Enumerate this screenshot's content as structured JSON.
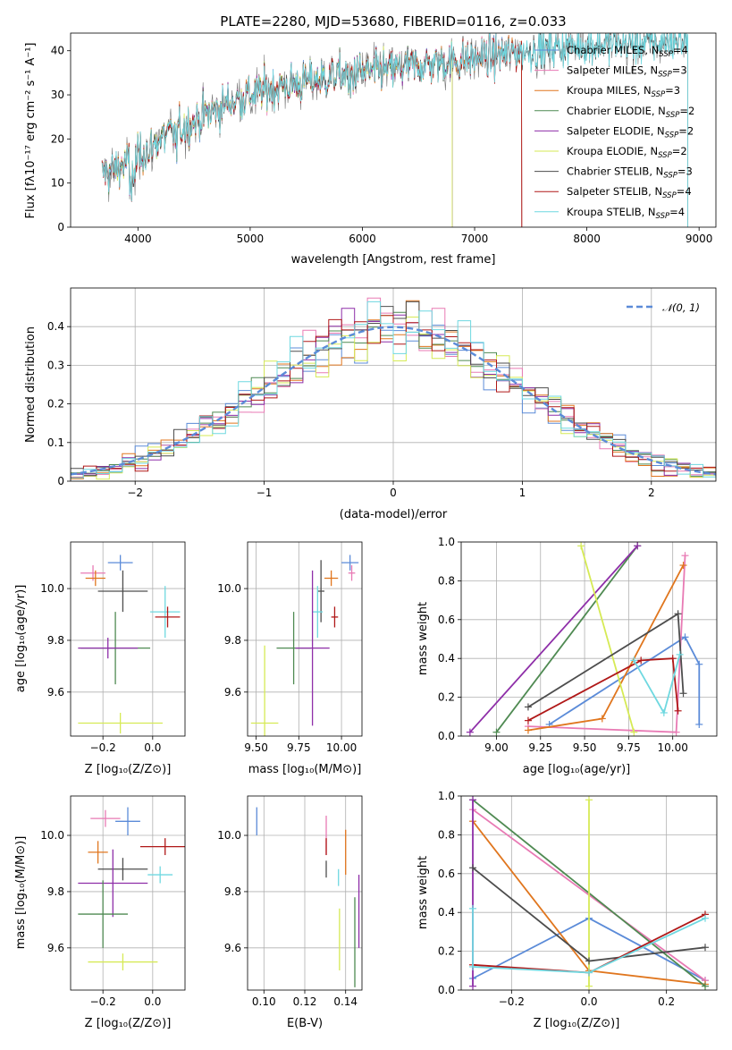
{
  "colors": {
    "Chabrier MILES": "#5b8bd8",
    "Salpeter MILES": "#e87ab4",
    "Kroupa MILES": "#e0761e",
    "Chabrier ELODIE": "#4f8a52",
    "Salpeter ELODIE": "#8e2ea8",
    "Kroupa ELODIE": "#d6ea55",
    "Chabrier STELIB": "#4d4d4d",
    "Salpeter STELIB": "#b01818",
    "Kroupa STELIB": "#6fd8e0"
  },
  "chart_data": [
    {
      "id": "spectrum",
      "type": "line",
      "title": "PLATE=2280, MJD=53680, FIBERID=0116, z=0.033",
      "xlabel": "wavelength [Angstrom, rest frame]",
      "ylabel": "Flux [fλ10⁻¹⁷ erg cm⁻² s⁻¹ A⁻¹]",
      "xlim": [
        3400,
        9150
      ],
      "ylim": [
        0,
        44
      ],
      "xticks": [
        4000,
        5000,
        6000,
        7000,
        8000,
        9000
      ],
      "yticks": [
        0,
        10,
        20,
        30,
        40
      ],
      "legend_position": "top-right",
      "legend": [
        {
          "base": "Chabrier MILES, N",
          "sub": "SSP",
          "tail": "=4"
        },
        {
          "base": "Salpeter MILES, N",
          "sub": "SSP",
          "tail": "=3"
        },
        {
          "base": "Kroupa MILES, N",
          "sub": "SSP",
          "tail": "=3"
        },
        {
          "base": "Chabrier ELODIE, N",
          "sub": "SSP",
          "tail": "=2"
        },
        {
          "base": "Salpeter ELODIE, N",
          "sub": "SSP",
          "tail": "=2"
        },
        {
          "base": "Kroupa ELODIE, N",
          "sub": "SSP",
          "tail": "=2"
        },
        {
          "base": "Chabrier STELIB, N",
          "sub": "SSP",
          "tail": "=3"
        },
        {
          "base": "Salpeter STELIB, N",
          "sub": "SSP",
          "tail": "=4"
        },
        {
          "base": "Kroupa STELIB, N",
          "sub": "SSP",
          "tail": "=4"
        }
      ],
      "continuum": {
        "x": [
          3680,
          3850,
          4000,
          4200,
          4500,
          4800,
          5000,
          5200,
          5500,
          5800,
          6000,
          6300,
          6600,
          6900,
          7200,
          7500,
          7800,
          8100,
          8400,
          8700,
          8900
        ],
        "y": [
          12,
          14,
          16,
          20,
          24,
          28,
          30,
          31.5,
          33,
          34.5,
          35,
          36,
          37,
          38,
          39,
          40,
          41,
          41.5,
          41.5,
          42,
          42.5
        ]
      },
      "model_x_end": {
        "Chabrier MILES": 7420,
        "Kroupa MILES": 7420,
        "Salpeter MILES": 7420,
        "Chabrier STELIB": 8900,
        "Salpeter STELIB": 7420,
        "Kroupa STELIB": 8900,
        "Chabrier ELODIE": 6800,
        "Salpeter ELODIE": 6800,
        "Kroupa ELODIE": 6800
      }
    },
    {
      "id": "residuals",
      "type": "histogram",
      "xlabel": "(data-model)/error",
      "ylabel": "Normed distribution",
      "xlim": [
        -2.5,
        2.5
      ],
      "ylim": [
        0,
        0.5
      ],
      "xticks": [
        -2,
        -1,
        0,
        1,
        2
      ],
      "xtick_labels": [
        "−2",
        "−1",
        "0",
        "1",
        "2"
      ],
      "yticks": [
        0,
        0.1,
        0.2,
        0.3,
        0.4
      ],
      "legend_position": "top-right",
      "legend": "𝒩(0, 1)",
      "bin_width": 0.1
    },
    {
      "id": "age-vs-z",
      "type": "errorbar",
      "xlabel": "Z [log₁₀(Z/Z⊙)]",
      "ylabel": "age  [log₁₀(age/yr)]",
      "xlim": [
        -0.33,
        0.13
      ],
      "ylim": [
        9.43,
        10.18
      ],
      "xticks": [
        -0.2,
        0.0
      ],
      "xtick_labels": [
        "−0.2",
        "0.0"
      ],
      "yticks": [
        9.6,
        9.8,
        10.0
      ],
      "yticks_labels": [
        "9.6",
        "9.8",
        "10.0"
      ],
      "points": [
        {
          "model": "Chabrier MILES",
          "x": -0.13,
          "y": 10.1,
          "xerr": 0.05,
          "yerr": 0.03
        },
        {
          "model": "Salpeter MILES",
          "x": -0.24,
          "y": 10.06,
          "xerr": 0.05,
          "yerr": 0.03
        },
        {
          "model": "Kroupa MILES",
          "x": -0.23,
          "y": 10.04,
          "xerr": 0.04,
          "yerr": 0.03
        },
        {
          "model": "Chabrier STELIB",
          "x": -0.12,
          "y": 9.99,
          "xerr": 0.1,
          "yerr": 0.08
        },
        {
          "model": "Kroupa STELIB",
          "x": 0.05,
          "y": 9.91,
          "xerr": 0.06,
          "yerr": 0.1
        },
        {
          "model": "Salpeter STELIB",
          "x": 0.06,
          "y": 9.89,
          "xerr": 0.05,
          "yerr": 0.04
        },
        {
          "model": "Chabrier ELODIE",
          "x": -0.15,
          "y": 9.77,
          "xerr": 0.14,
          "yerr": 0.14
        },
        {
          "model": "Salpeter ELODIE",
          "x": -0.18,
          "y": 9.77,
          "xerr": 0.12,
          "yerr": 0.04
        },
        {
          "model": "Kroupa ELODIE",
          "x": -0.13,
          "y": 9.48,
          "xerr": 0.17,
          "yerr": 0.04
        }
      ]
    },
    {
      "id": "age-vs-mass",
      "type": "errorbar",
      "xlabel": "mass [log₁₀(M/M⊙)]",
      "ylabel": "",
      "xlim": [
        9.45,
        10.12
      ],
      "ylim": [
        9.43,
        10.18
      ],
      "xticks": [
        9.5,
        9.75,
        10.0
      ],
      "xtick_labels": [
        "9.50",
        "9.75",
        "10.00"
      ],
      "yticks": [
        9.6,
        9.8,
        10.0
      ],
      "yticks_labels": [
        "9.6",
        "9.8",
        "10.0"
      ],
      "points": [
        {
          "model": "Chabrier MILES",
          "x": 10.05,
          "y": 10.1,
          "xerr": 0.05,
          "yerr": 0.03
        },
        {
          "model": "Salpeter MILES",
          "x": 10.06,
          "y": 10.06,
          "xerr": 0.02,
          "yerr": 0.03
        },
        {
          "model": "Kroupa MILES",
          "x": 9.94,
          "y": 10.04,
          "xerr": 0.04,
          "yerr": 0.03
        },
        {
          "model": "Chabrier STELIB",
          "x": 9.88,
          "y": 9.99,
          "xerr": 0.02,
          "yerr": 0.12
        },
        {
          "model": "Kroupa STELIB",
          "x": 9.86,
          "y": 9.91,
          "xerr": 0.03,
          "yerr": 0.1
        },
        {
          "model": "Salpeter STELIB",
          "x": 9.96,
          "y": 9.89,
          "xerr": 0.02,
          "yerr": 0.04
        },
        {
          "model": "Chabrier ELODIE",
          "x": 9.72,
          "y": 9.77,
          "xerr": 0.1,
          "yerr": 0.14
        },
        {
          "model": "Salpeter ELODIE",
          "x": 9.83,
          "y": 9.77,
          "xerr": 0.1,
          "yerr": 0.3
        },
        {
          "model": "Kroupa ELODIE",
          "x": 9.55,
          "y": 9.48,
          "xerr": 0.08,
          "yerr": 0.3
        }
      ]
    },
    {
      "id": "weight-vs-age",
      "type": "line",
      "xlabel": "age  [log₁₀(age/yr)]",
      "ylabel": "mass weight",
      "xlim": [
        8.8,
        10.25
      ],
      "ylim": [
        0,
        1
      ],
      "xticks": [
        9.0,
        9.25,
        9.5,
        9.75,
        10.0
      ],
      "xtick_labels": [
        "9.00",
        "9.25",
        "9.50",
        "9.75",
        "10.00"
      ],
      "yticks": [
        0,
        0.2,
        0.4,
        0.6,
        0.8,
        1.0
      ],
      "yticks_labels": [
        "0.0",
        "0.2",
        "0.4",
        "0.6",
        "0.8",
        "1.0"
      ],
      "series": [
        {
          "model": "Chabrier MILES",
          "x": [
            9.3,
            10.07,
            10.15,
            10.15
          ],
          "y": [
            0.06,
            0.51,
            0.37,
            0.06
          ]
        },
        {
          "model": "Salpeter MILES",
          "x": [
            9.18,
            10.02,
            10.07
          ],
          "y": [
            0.05,
            0.02,
            0.93
          ]
        },
        {
          "model": "Kroupa MILES",
          "x": [
            9.18,
            9.6,
            10.06
          ],
          "y": [
            0.03,
            0.09,
            0.88
          ]
        },
        {
          "model": "Chabrier ELODIE",
          "x": [
            9.0,
            9.8
          ],
          "y": [
            0.02,
            0.98
          ]
        },
        {
          "model": "Salpeter ELODIE",
          "x": [
            8.85,
            9.8
          ],
          "y": [
            0.02,
            0.98
          ]
        },
        {
          "model": "Kroupa ELODIE",
          "x": [
            9.48,
            9.78
          ],
          "y": [
            0.98,
            0.02
          ]
        },
        {
          "model": "Chabrier STELIB",
          "x": [
            9.18,
            10.03,
            10.06
          ],
          "y": [
            0.15,
            0.63,
            0.22
          ]
        },
        {
          "model": "Salpeter STELIB",
          "x": [
            9.18,
            9.82,
            10.0,
            10.03
          ],
          "y": [
            0.08,
            0.39,
            0.4,
            0.13
          ]
        },
        {
          "model": "Kroupa STELIB",
          "x": [
            9.78,
            9.95,
            10.04
          ],
          "y": [
            0.39,
            0.12,
            0.42
          ]
        }
      ]
    },
    {
      "id": "mass-vs-z",
      "type": "errorbar",
      "xlabel": "Z [log₁₀(Z/Z⊙)]",
      "ylabel": "mass [log₁₀(M/M⊙)]",
      "xlim": [
        -0.33,
        0.13
      ],
      "ylim": [
        9.45,
        10.14
      ],
      "xticks": [
        -0.2,
        0.0
      ],
      "xtick_labels": [
        "−0.2",
        "0.0"
      ],
      "yticks": [
        9.6,
        9.8,
        10.0
      ],
      "yticks_labels": [
        "9.6",
        "9.8",
        "10.0"
      ],
      "points": [
        {
          "model": "Salpeter MILES",
          "x": -0.19,
          "y": 10.06,
          "xerr": 0.06,
          "yerr": 0.03
        },
        {
          "model": "Chabrier MILES",
          "x": -0.1,
          "y": 10.05,
          "xerr": 0.05,
          "yerr": 0.05
        },
        {
          "model": "Salpeter STELIB",
          "x": 0.05,
          "y": 9.96,
          "xerr": 0.1,
          "yerr": 0.03
        },
        {
          "model": "Kroupa MILES",
          "x": -0.22,
          "y": 9.94,
          "xerr": 0.04,
          "yerr": 0.04
        },
        {
          "model": "Chabrier STELIB",
          "x": -0.12,
          "y": 9.88,
          "xerr": 0.1,
          "yerr": 0.04
        },
        {
          "model": "Kroupa STELIB",
          "x": 0.03,
          "y": 9.86,
          "xerr": 0.05,
          "yerr": 0.03
        },
        {
          "model": "Salpeter ELODIE",
          "x": -0.16,
          "y": 9.83,
          "xerr": 0.14,
          "yerr": 0.12
        },
        {
          "model": "Chabrier ELODIE",
          "x": -0.2,
          "y": 9.72,
          "xerr": 0.1,
          "yerr": 0.12
        },
        {
          "model": "Kroupa ELODIE",
          "x": -0.12,
          "y": 9.55,
          "xerr": 0.14,
          "yerr": 0.03
        }
      ]
    },
    {
      "id": "mass-vs-ebv",
      "type": "errorbar",
      "xlabel": "E(B-V)",
      "ylabel": "",
      "xlim": [
        0.092,
        0.148
      ],
      "ylim": [
        9.45,
        10.14
      ],
      "xticks": [
        0.1,
        0.12,
        0.14
      ],
      "xtick_labels": [
        "0.10",
        "0.12",
        "0.14"
      ],
      "yticks": [
        9.6,
        9.8,
        10.0
      ],
      "yticks_labels": [
        "9.6",
        "9.8",
        "10.0"
      ],
      "points": [
        {
          "model": "Chabrier MILES",
          "x": 0.0965,
          "y": 10.05,
          "xerr": 0,
          "yerr": 0.05
        },
        {
          "model": "Salpeter MILES",
          "x": 0.1305,
          "y": 10.0,
          "xerr": 0,
          "yerr": 0.07
        },
        {
          "model": "Kroupa MILES",
          "x": 0.14,
          "y": 9.94,
          "xerr": 0,
          "yerr": 0.08
        },
        {
          "model": "Salpeter STELIB",
          "x": 0.1305,
          "y": 9.96,
          "xerr": 0,
          "yerr": 0.03
        },
        {
          "model": "Chabrier STELIB",
          "x": 0.1305,
          "y": 9.88,
          "xerr": 0,
          "yerr": 0.03
        },
        {
          "model": "Kroupa STELIB",
          "x": 0.1365,
          "y": 9.85,
          "xerr": 0,
          "yerr": 0.03
        },
        {
          "model": "Salpeter ELODIE",
          "x": 0.1465,
          "y": 9.73,
          "xerr": 0,
          "yerr": 0.13
        },
        {
          "model": "Kroupa ELODIE",
          "x": 0.137,
          "y": 9.63,
          "xerr": 0,
          "yerr": 0.11
        },
        {
          "model": "Chabrier ELODIE",
          "x": 0.1445,
          "y": 9.62,
          "xerr": 0,
          "yerr": 0.16
        }
      ]
    },
    {
      "id": "weight-vs-z",
      "type": "line",
      "xlabel": "Z [log₁₀(Z/Z⊙)]",
      "ylabel": "mass weight",
      "xlim": [
        -0.33,
        0.33
      ],
      "ylim": [
        0,
        1
      ],
      "xticks": [
        -0.2,
        0.0,
        0.2
      ],
      "xtick_labels": [
        "−0.2",
        "0.0",
        "0.2"
      ],
      "yticks": [
        0,
        0.2,
        0.4,
        0.6,
        0.8,
        1.0
      ],
      "yticks_labels": [
        "0.0",
        "0.2",
        "0.4",
        "0.6",
        "0.8",
        "1.0"
      ],
      "series": [
        {
          "model": "Chabrier MILES",
          "x": [
            -0.3,
            0.0,
            0.3
          ],
          "y": [
            0.06,
            0.37,
            0.05
          ]
        },
        {
          "model": "Salpeter MILES",
          "x": [
            -0.3,
            0.3
          ],
          "y": [
            0.93,
            0.05
          ]
        },
        {
          "model": "Kroupa MILES",
          "x": [
            -0.3,
            0.0,
            0.3
          ],
          "y": [
            0.87,
            0.1,
            0.03
          ]
        },
        {
          "model": "Chabrier ELODIE",
          "x": [
            -0.3,
            0.3
          ],
          "y": [
            0.98,
            0.02
          ]
        },
        {
          "model": "Salpeter ELODIE",
          "x": [
            -0.3,
            -0.3
          ],
          "y": [
            0.98,
            0.02
          ]
        },
        {
          "model": "Kroupa ELODIE",
          "x": [
            0.0,
            0.0
          ],
          "y": [
            0.98,
            0.02
          ]
        },
        {
          "model": "Chabrier STELIB",
          "x": [
            -0.3,
            0.0,
            0.3
          ],
          "y": [
            0.63,
            0.15,
            0.22
          ]
        },
        {
          "model": "Salpeter STELIB",
          "x": [
            -0.3,
            0.0,
            0.3
          ],
          "y": [
            0.13,
            0.09,
            0.39
          ]
        },
        {
          "model": "Kroupa STELIB",
          "x": [
            -0.3,
            -0.3,
            0.0,
            0.3
          ],
          "y": [
            0.42,
            0.12,
            0.09,
            0.37
          ]
        }
      ]
    }
  ]
}
